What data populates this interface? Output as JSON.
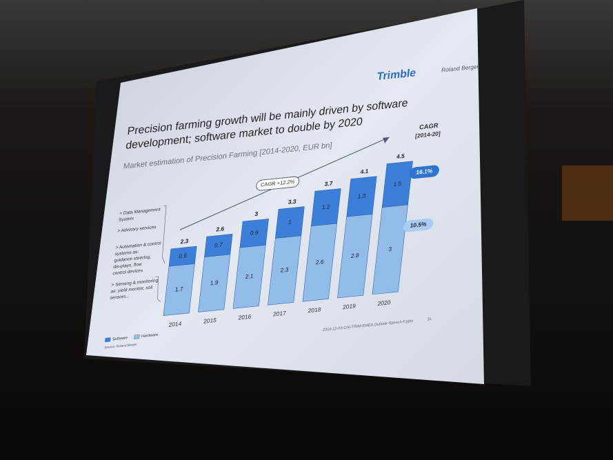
{
  "chart_data": {
    "type": "stacked_bar",
    "logos": [
      "Trimble",
      "Roland Berger"
    ],
    "title": [
      "Precision farming growth will be mainly driven by software",
      "development; software market to double by 2020"
    ],
    "subtitle": "Market estimation of Precision Farming [2014-2020, EUR bn]",
    "cagr_header": [
      "CAGR",
      "[2014-20]"
    ],
    "categories": [
      "2014",
      "2015",
      "2016",
      "2017",
      "2018",
      "2019",
      "2020"
    ],
    "series": [
      {
        "name": "Hardware",
        "color": "#92bde9",
        "values": [
          1.7,
          1.9,
          2.1,
          2.3,
          2.6,
          2.8,
          3.0
        ],
        "cagr": "10.5%"
      },
      {
        "name": "Software",
        "color": "#3b7fd8",
        "values": [
          0.6,
          0.7,
          0.9,
          1.0,
          1.2,
          1.3,
          1.5
        ],
        "cagr": "16.1%"
      }
    ],
    "totals": [
      2.3,
      2.6,
      3.0,
      3.3,
      3.7,
      4.1,
      4.5
    ],
    "growth_annotation": "CAGR +12.2%",
    "side_notes": [
      [
        "> Data Management",
        "System"
      ],
      [
        "> Advisory services"
      ],
      [
        "> Automation & control",
        "systems as:",
        "guidance steering,",
        "dis-plays, flow",
        "control devices"
      ],
      [
        "> Sensing & monitoring",
        "as: yield monitor, soil",
        "sensors..."
      ]
    ],
    "source": "Source: Roland Berger",
    "footer": "2016-12-03-CHI-TRIM-EMEA Outlook-Speech-F.pptx",
    "page": "31"
  }
}
